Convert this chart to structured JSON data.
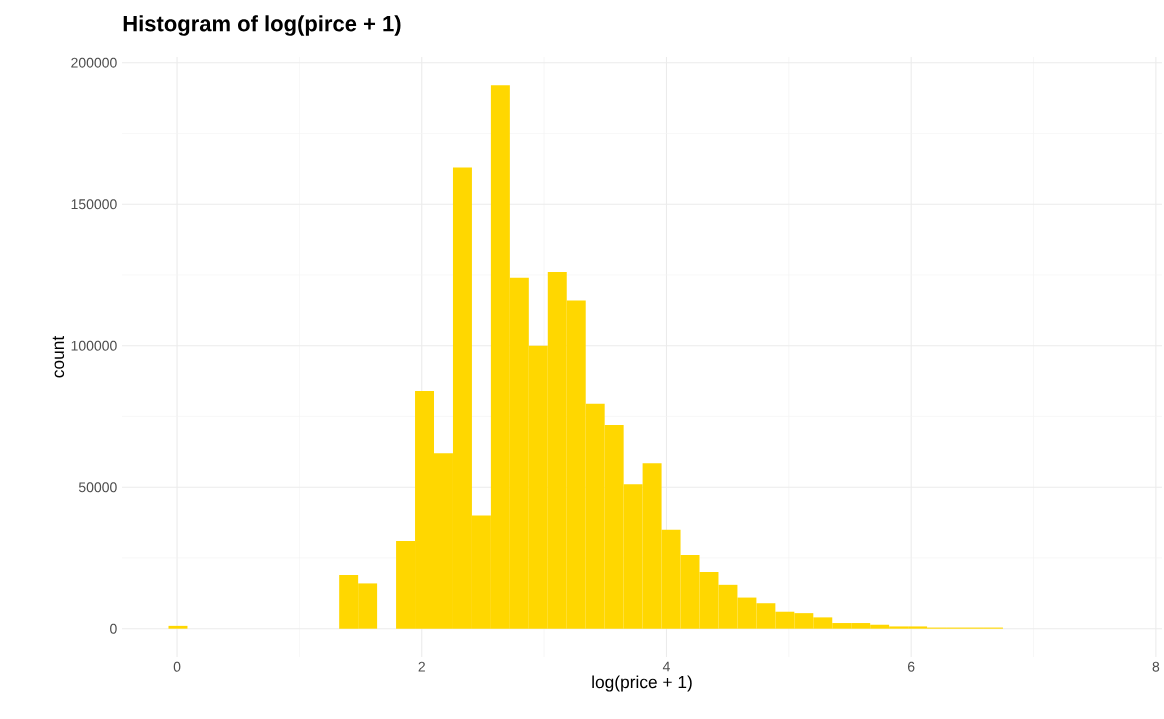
{
  "chart_data": {
    "type": "histogram",
    "title": "Histogram of log(pirce + 1)",
    "xlabel": "log(price + 1)",
    "ylabel": "count",
    "bins": [
      -0.07,
      0.085,
      0.24,
      0.395,
      0.55,
      0.705,
      0.86,
      1.015,
      1.17,
      1.325,
      1.48,
      1.635,
      1.79,
      1.945,
      2.1,
      2.255,
      2.41,
      2.565,
      2.72,
      2.875,
      3.03,
      3.185,
      3.34,
      3.495,
      3.65,
      3.805,
      3.96,
      4.115,
      4.27,
      4.425,
      4.58,
      4.735,
      4.89,
      5.045,
      5.2,
      5.355,
      5.51,
      5.665,
      5.82,
      5.975,
      6.13,
      6.285,
      6.44,
      6.595,
      6.75
    ],
    "values": [
      1000,
      0,
      0,
      0,
      0,
      0,
      0,
      0,
      0,
      19000,
      16000,
      0,
      31000,
      84000,
      62000,
      163000,
      40000,
      192000,
      124000,
      100000,
      126000,
      116000,
      79500,
      72000,
      51000,
      58500,
      35000,
      26000,
      20000,
      15500,
      11000,
      9000,
      6000,
      5500,
      4000,
      2000,
      2000,
      1400,
      800,
      800,
      400,
      400,
      400,
      400
    ],
    "color": "#ffd700",
    "xlim": [
      -0.45,
      8.05
    ],
    "ylim": [
      -10000,
      202000
    ],
    "xticks": [
      0,
      2,
      4,
      6,
      8
    ],
    "yticks": [
      0,
      50000,
      100000,
      150000,
      200000
    ],
    "grid": true
  }
}
